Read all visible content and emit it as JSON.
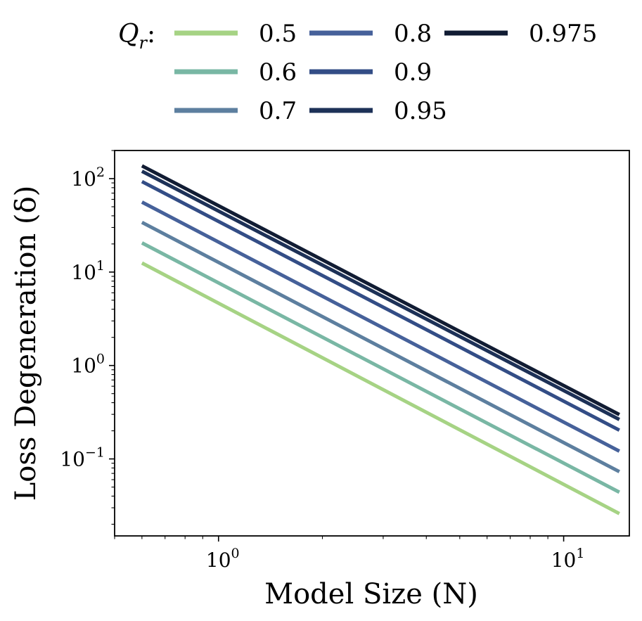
{
  "chart_data": {
    "type": "line",
    "scale": "log-log",
    "xlabel": "Model Size (N)",
    "ylabel": "Loss Degeneration (δ)",
    "xlim": [
      0.5,
      15.5
    ],
    "ylim": [
      0.015,
      200
    ],
    "x_ticks": [
      {
        "value": 1,
        "base": "10",
        "exp": "0"
      },
      {
        "value": 10,
        "base": "10",
        "exp": "1"
      }
    ],
    "y_ticks": [
      {
        "value": 0.1,
        "base": "10",
        "exp": "−1"
      },
      {
        "value": 1,
        "base": "10",
        "exp": "0"
      },
      {
        "value": 10,
        "base": "10",
        "exp": "1"
      },
      {
        "value": 100,
        "base": "10",
        "exp": "2"
      }
    ],
    "legend": {
      "title": "Q",
      "title_sub": "r",
      "title_suffix": ":",
      "placement": "top",
      "columns": 3
    },
    "series": [
      {
        "name": "0.5",
        "color": "#a6d384",
        "x": [
          0.6,
          14.5
        ],
        "y": [
          12.5,
          0.026
        ]
      },
      {
        "name": "0.6",
        "color": "#79b7a4",
        "x": [
          0.6,
          14.5
        ],
        "y": [
          20.5,
          0.044
        ]
      },
      {
        "name": "0.7",
        "color": "#5d7f9f",
        "x": [
          0.6,
          14.5
        ],
        "y": [
          34,
          0.073
        ]
      },
      {
        "name": "0.8",
        "color": "#46619a",
        "x": [
          0.6,
          14.5
        ],
        "y": [
          56,
          0.121
        ]
      },
      {
        "name": "0.9",
        "color": "#334d86",
        "x": [
          0.6,
          14.5
        ],
        "y": [
          93,
          0.203
        ]
      },
      {
        "name": "0.95",
        "color": "#1d3157",
        "x": [
          0.6,
          14.5
        ],
        "y": [
          120,
          0.264
        ]
      },
      {
        "name": "0.975",
        "color": "#111c33",
        "x": [
          0.6,
          14.5
        ],
        "y": [
          137,
          0.298
        ]
      }
    ]
  }
}
